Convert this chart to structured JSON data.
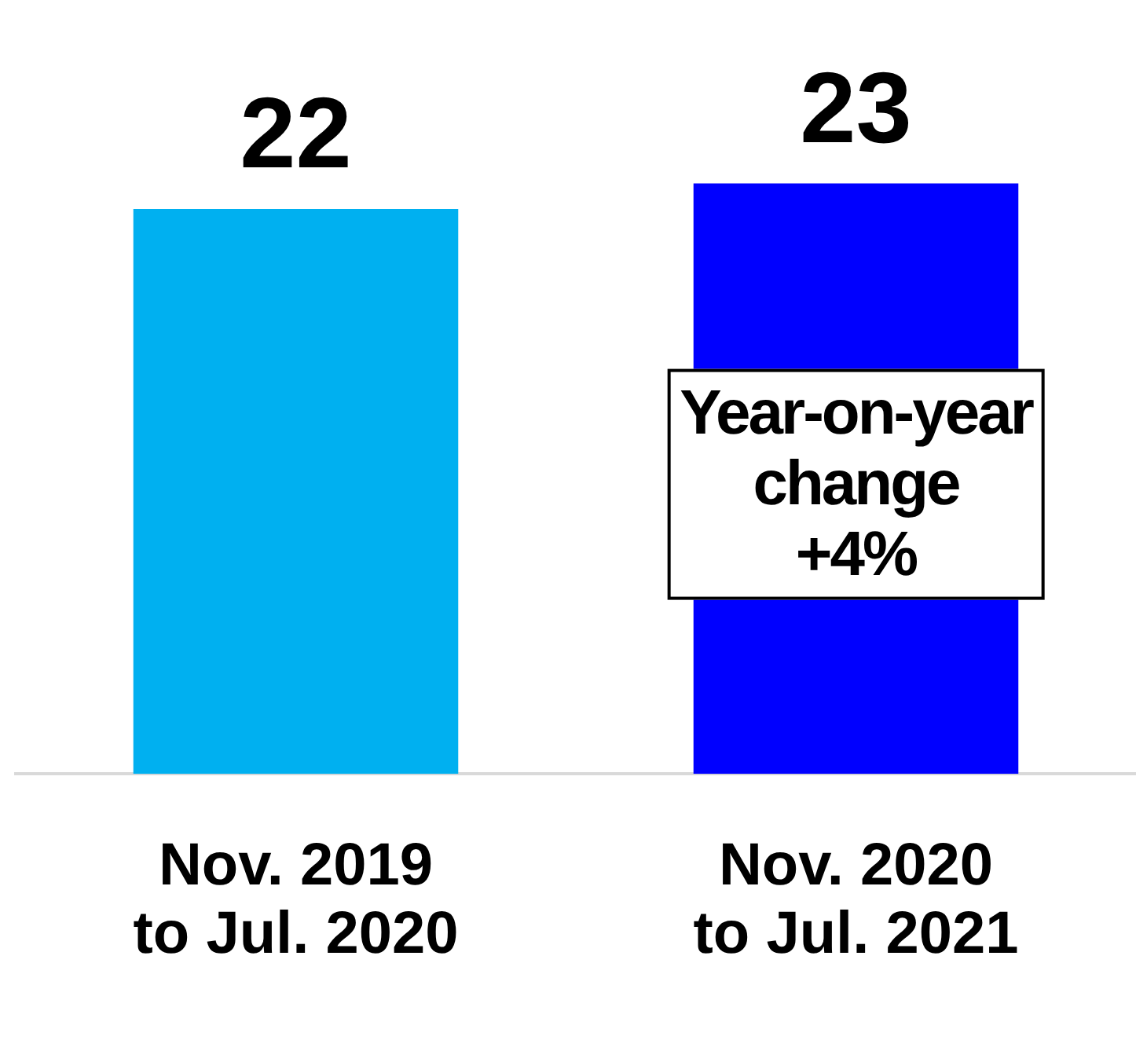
{
  "chart_data": {
    "type": "bar",
    "categories": [
      "Nov. 2019\nto Jul. 2020",
      "Nov. 2020\nto Jul. 2021"
    ],
    "values": [
      22,
      23
    ],
    "colors": [
      "#00b0f0",
      "#0000ff"
    ],
    "data_labels": true,
    "tick_labels": "x",
    "grid": false,
    "legend": false,
    "annotations": [
      "Year-on-year\nchange\n+4%"
    ]
  }
}
